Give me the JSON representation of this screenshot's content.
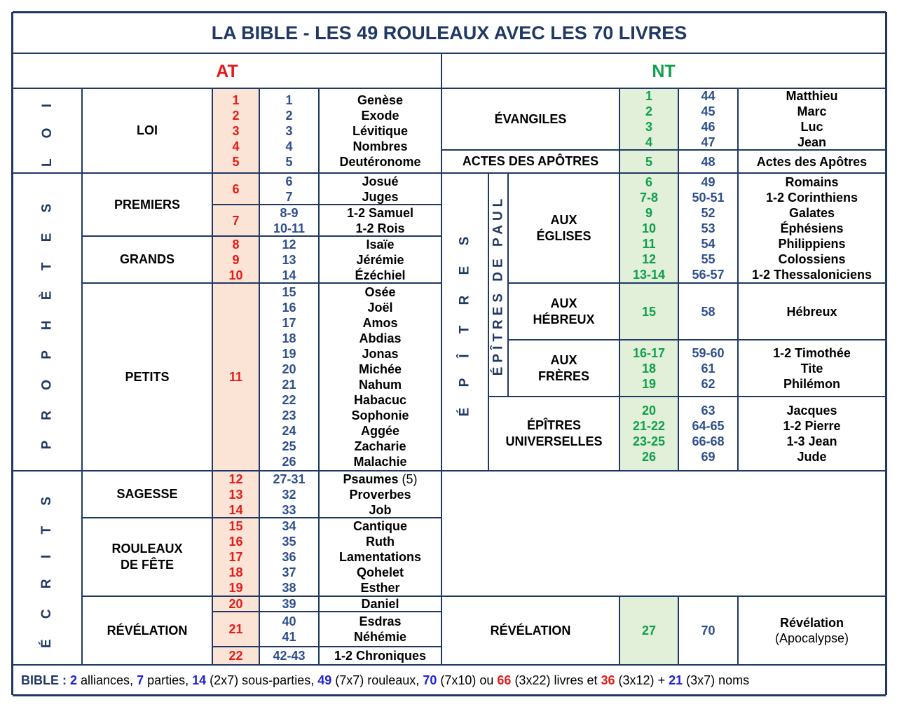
{
  "title": "LA  BIBLE  -  LES  49  ROULEAUX  AVEC  LES  70  LIVRES",
  "at": {
    "label": "AT",
    "sections": [
      {
        "name": "L O I",
        "groups": [
          {
            "name": "LOI",
            "blocks": [
              {
                "scroll": [
                  "1",
                  "2",
                  "3",
                  "4",
                  "5"
                ],
                "nums": [
                  "1",
                  "2",
                  "3",
                  "4",
                  "5"
                ],
                "books": [
                  "Genèse",
                  "Exode",
                  "Lévitique",
                  "Nombres",
                  "Deutéronome"
                ]
              }
            ]
          }
        ]
      },
      {
        "name": "P R O P H È T E S",
        "groups": [
          {
            "name": "PREMIERS",
            "blocks": [
              {
                "scroll": [
                  "6"
                ],
                "nums": [
                  "6",
                  "7"
                ],
                "books": [
                  "Josué",
                  "Juges"
                ]
              },
              {
                "scroll": [
                  "7"
                ],
                "nums": [
                  "8-9",
                  "10-11"
                ],
                "books": [
                  "1-2 Samuel",
                  "1-2 Rois"
                ]
              }
            ]
          },
          {
            "name": "GRANDS",
            "blocks": [
              {
                "scroll": [
                  "8",
                  "9",
                  "10"
                ],
                "nums": [
                  "12",
                  "13",
                  "14"
                ],
                "books": [
                  "Isaïe",
                  "Jérémie",
                  "Ézéchiel"
                ]
              }
            ]
          },
          {
            "name": "PETITS",
            "blocks": [
              {
                "scroll": [
                  "11"
                ],
                "nums": [
                  "15",
                  "16",
                  "17",
                  "18",
                  "19",
                  "20",
                  "21",
                  "22",
                  "23",
                  "24",
                  "25",
                  "26"
                ],
                "books": [
                  "Osée",
                  "Joël",
                  "Amos",
                  "Abdias",
                  "Jonas",
                  "Michée",
                  "Nahum",
                  "Habacuc",
                  "Sophonie",
                  "Aggée",
                  "Zacharie",
                  "Malachie"
                ]
              }
            ]
          }
        ]
      },
      {
        "name": "É C R I T S",
        "groups": [
          {
            "name": "SAGESSE",
            "blocks": [
              {
                "scroll": [
                  "12",
                  "13",
                  "14"
                ],
                "nums": [
                  "27-31",
                  "32",
                  "33"
                ],
                "books": [
                  "Psaumes",
                  "Proverbes",
                  "Job"
                ],
                "psalms_note": "(5)"
              }
            ]
          },
          {
            "name": "ROULEAUX DE FÊTE",
            "name_lines": [
              "ROULEAUX",
              "DE FÊTE"
            ],
            "blocks": [
              {
                "scroll": [
                  "15",
                  "16",
                  "17",
                  "18",
                  "19"
                ],
                "nums": [
                  "34",
                  "35",
                  "36",
                  "37",
                  "38"
                ],
                "books": [
                  "Cantique",
                  "Ruth",
                  "Lamentations",
                  "Qohelet",
                  "Esther"
                ]
              }
            ]
          },
          {
            "name": "RÉVÉLATION",
            "blocks": [
              {
                "scroll": [
                  "20"
                ],
                "nums": [
                  "39"
                ],
                "books": [
                  "Daniel"
                ]
              },
              {
                "scroll": [
                  "21"
                ],
                "nums": [
                  "40",
                  "41"
                ],
                "books": [
                  "Esdras",
                  "Néhémie"
                ]
              },
              {
                "scroll": [
                  "22"
                ],
                "nums": [
                  "42-43"
                ],
                "books": [
                  "1-2 Chroniques"
                ]
              }
            ]
          }
        ]
      }
    ]
  },
  "nt": {
    "label": "NT",
    "groups": [
      {
        "name": "ÉVANGILES",
        "scroll": [
          "1",
          "2",
          "3",
          "4"
        ],
        "nums": [
          "44",
          "45",
          "46",
          "47"
        ],
        "books": [
          "Matthieu",
          "Marc",
          "Luc",
          "Jean"
        ]
      },
      {
        "name": "ACTES DES APÔTRES",
        "scroll": [
          "5"
        ],
        "nums": [
          "48"
        ],
        "books": [
          "Actes des Apôtres"
        ]
      },
      {
        "outer": "É P Î T R E S",
        "inner": "ÉPÎTRES DE PAUL",
        "name_lines": [
          "AUX",
          "ÉGLISES"
        ],
        "scroll": [
          "6",
          "7-8",
          "9",
          "10",
          "11",
          "12",
          "13-14"
        ],
        "nums": [
          "49",
          "50-51",
          "52",
          "53",
          "54",
          "55",
          "56-57"
        ],
        "books": [
          "Romains",
          "1-2 Corinthiens",
          "Galates",
          "Éphésiens",
          "Philippiens",
          "Colossiens",
          "1-2 Thessaloniciens"
        ]
      },
      {
        "name_lines": [
          "AUX",
          "HÉBREUX"
        ],
        "scroll": [
          "15"
        ],
        "nums": [
          "58"
        ],
        "books": [
          "Hébreux"
        ]
      },
      {
        "name_lines": [
          "AUX",
          "FRÈRES"
        ],
        "scroll": [
          "16-17",
          "18",
          "19"
        ],
        "nums": [
          "59-60",
          "61",
          "62"
        ],
        "books": [
          "1-2 Timothée",
          "Tite",
          "Philémon"
        ]
      },
      {
        "name_lines": [
          "ÉPÎTRES",
          "UNIVERSELLES"
        ],
        "scroll": [
          "20",
          "21-22",
          "23-25",
          "26"
        ],
        "nums": [
          "63",
          "64-65",
          "66-68",
          "69"
        ],
        "books": [
          "Jacques",
          "1-2 Pierre",
          "1-3 Jean",
          "Jude"
        ]
      },
      {
        "name": "RÉVÉLATION",
        "scroll": [
          "27"
        ],
        "nums": [
          "70"
        ],
        "books": [
          "Révélation"
        ],
        "note": "(Apocalypse)"
      }
    ]
  },
  "footer": {
    "label": "BIBLE :",
    "parts": [
      {
        "num": "2",
        "text": " alliances, ",
        "color": "#1f1fd6"
      },
      {
        "num": "7",
        "text": " parties, ",
        "color": "#1f1fd6"
      },
      {
        "num": "14",
        "note": " (2x7)",
        "text": " sous-parties, ",
        "color": "#1f1fd6"
      },
      {
        "num": "49",
        "note": " (7x7)",
        "text": " rouleaux, ",
        "color": "#1f1fd6"
      },
      {
        "num": "70",
        "note": " (7x10)",
        "text": " ou ",
        "color": "#1f1fd6"
      },
      {
        "num": "66",
        "note": " (3x22)",
        "text": " livres et ",
        "color": "#e41b17"
      },
      {
        "num": "36",
        "note": " (3x12)",
        "text": " + ",
        "color": "#e41b17"
      },
      {
        "num": "21",
        "note": " (3x7)",
        "text": " noms",
        "color": "#1f1fd6"
      }
    ]
  },
  "colors": {
    "border": "#1f3864",
    "at_scroll": "#e41b17",
    "nt_scroll": "#0fa04a",
    "numbers": "#2e4f8c",
    "at_fill": "#fbe3d6",
    "nt_fill": "#e2efd9"
  }
}
